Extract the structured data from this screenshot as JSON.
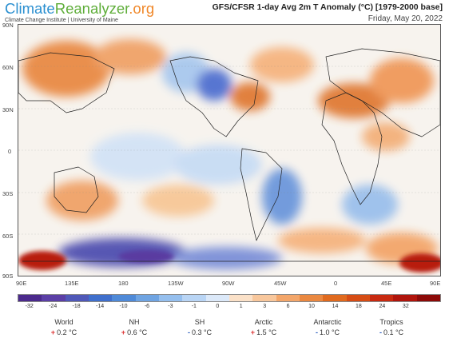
{
  "header": {
    "logo_part1": "Climate",
    "logo_part2": "Reanalyzer",
    "logo_part3": ".org",
    "logo_subtitle": "Climate Change Institute | University of Maine",
    "title": "GFS/CFSR 1-day Avg 2m T Anomaly (°C) [1979-2000 base]",
    "date": "Friday, May 20, 2022"
  },
  "map": {
    "lat_labels": [
      "90N",
      "60N",
      "30N",
      "0",
      "30S",
      "60S",
      "90S"
    ],
    "lon_labels": [
      "90E",
      "135E",
      "180",
      "135W",
      "90W",
      "45W",
      "0",
      "45E",
      "90E"
    ]
  },
  "scale": {
    "ticks": [
      "-32",
      "-24",
      "-18",
      "-14",
      "-10",
      "-6",
      "-3",
      "-1",
      "0",
      "1",
      "3",
      "6",
      "10",
      "14",
      "18",
      "24",
      "32"
    ],
    "colors": [
      "#4b2a8c",
      "#5b3fa6",
      "#4f58b8",
      "#3f6fcc",
      "#4f8ad8",
      "#6fa4e2",
      "#95bfee",
      "#b9d5f5",
      "#dce9f9",
      "#fbe1c8",
      "#f8c79c",
      "#f3a66a",
      "#ea8840",
      "#e06a1e",
      "#d64c14",
      "#c82a10",
      "#b0150c",
      "#8c0a08"
    ]
  },
  "stats": [
    {
      "name": "World",
      "sign": "+",
      "value": "0.2 °C",
      "color": "#d33"
    },
    {
      "name": "NH",
      "sign": "+",
      "value": "0.6 °C",
      "color": "#d33"
    },
    {
      "name": "SH",
      "sign": "-",
      "value": "0.3 °C",
      "color": "#2255bb"
    },
    {
      "name": "Arctic",
      "sign": "+",
      "value": "1.5 °C",
      "color": "#d33"
    },
    {
      "name": "Antarctic",
      "sign": "-",
      "value": "1.0 °C",
      "color": "#2255bb"
    },
    {
      "name": "Tropics",
      "sign": "-",
      "value": "0.1 °C",
      "color": "#2255bb"
    }
  ]
}
